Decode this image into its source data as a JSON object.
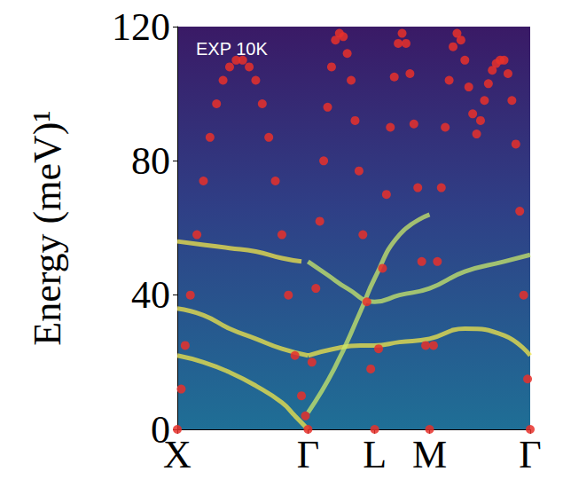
{
  "chart_data": {
    "type": "scatter",
    "annotation": "EXP 10K",
    "y_label": "Energy (meV)¹",
    "xlim": [
      0,
      2.7
    ],
    "xticks": [
      {
        "value": 0,
        "label": "X"
      },
      {
        "value": 1,
        "label": "Γ"
      },
      {
        "value": 1.51,
        "label": "L"
      },
      {
        "value": 1.93,
        "label": "M"
      },
      {
        "value": 2.7,
        "label": "Γ"
      }
    ],
    "ylim": [
      0,
      120
    ],
    "yticks": [
      0,
      40,
      80,
      120
    ],
    "grid": false,
    "series": [
      {
        "type": "line",
        "color": "#f2e64a",
        "line_style": "solid",
        "x": [
          0,
          0.2,
          0.4,
          0.6,
          0.8,
          0.95
        ],
        "values": [
          56,
          55,
          54,
          53,
          51,
          50
        ]
      },
      {
        "type": "line",
        "color": "#f2e64a",
        "line_style": "solid",
        "x": [
          0,
          0.2,
          0.4,
          0.6,
          0.8,
          1.0
        ],
        "values": [
          36,
          34,
          30,
          27,
          24,
          22
        ]
      },
      {
        "type": "line",
        "color": "#f2e64a",
        "line_style": "solid",
        "x": [
          0,
          0.2,
          0.4,
          0.6,
          0.8,
          0.9,
          1.0
        ],
        "values": [
          22,
          20,
          17,
          13,
          8,
          4,
          0
        ]
      },
      {
        "type": "line",
        "color": "#f2e64a",
        "line_style": "solid",
        "x": [
          1.0,
          1.2,
          1.4,
          1.51,
          1.7,
          1.93,
          2.2,
          2.5,
          2.7
        ],
        "values": [
          22,
          24,
          25,
          25,
          26,
          27,
          30,
          28,
          22
        ]
      },
      {
        "type": "line",
        "color": "#c9e86a",
        "line_style": "solid",
        "x": [
          1.0,
          1.15,
          1.3,
          1.51,
          1.7,
          1.93,
          2.2,
          2.5,
          2.7
        ],
        "values": [
          50,
          46,
          42,
          38,
          40,
          42,
          47,
          50,
          52
        ]
      },
      {
        "type": "line",
        "color": "#c9e86a",
        "line_style": "solid",
        "x": [
          1.0,
          1.2,
          1.4,
          1.51,
          1.7,
          1.93
        ],
        "values": [
          5,
          18,
          35,
          45,
          58,
          64
        ]
      },
      {
        "type": "scatter",
        "color": "#e8302a",
        "marker": "circle",
        "x": [
          0,
          0.03,
          0.06,
          0.1,
          0.15,
          0.2,
          0.25,
          0.3,
          0.35,
          0.4,
          0.45,
          0.5,
          0.55,
          0.6,
          0.65,
          0.7,
          0.75,
          0.8,
          0.85,
          0.9,
          0.95,
          0.98,
          1.0,
          1.03,
          1.06,
          1.09,
          1.12,
          1.15,
          1.18,
          1.21,
          1.24,
          1.27,
          1.3,
          1.33,
          1.36,
          1.39,
          1.42,
          1.45,
          1.48,
          1.51,
          1.54,
          1.57,
          1.6,
          1.63,
          1.66,
          1.69,
          1.72,
          1.75,
          1.78,
          1.81,
          1.84,
          1.87,
          1.9,
          1.93,
          1.96,
          1.99,
          2.02,
          2.05,
          2.08,
          2.11,
          2.14,
          2.17,
          2.2,
          2.23,
          2.26,
          2.29,
          2.32,
          2.35,
          2.38,
          2.41,
          2.44,
          2.47,
          2.5,
          2.53,
          2.56,
          2.59,
          2.62,
          2.65,
          2.68,
          2.7
        ],
        "values": [
          0,
          12,
          25,
          40,
          58,
          74,
          87,
          97,
          104,
          108,
          110,
          110,
          108,
          104,
          97,
          87,
          74,
          58,
          40,
          22,
          10,
          4,
          0,
          20,
          42,
          62,
          80,
          96,
          108,
          116,
          118,
          117,
          112,
          104,
          92,
          77,
          58,
          38,
          18,
          0,
          24,
          48,
          70,
          90,
          105,
          115,
          118,
          115,
          106,
          91,
          72,
          50,
          25,
          0,
          25,
          50,
          72,
          90,
          104,
          114,
          118,
          116,
          110,
          102,
          94,
          88,
          92,
          98,
          103,
          107,
          109,
          110,
          110,
          106,
          98,
          85,
          65,
          40,
          15,
          0
        ]
      }
    ]
  }
}
